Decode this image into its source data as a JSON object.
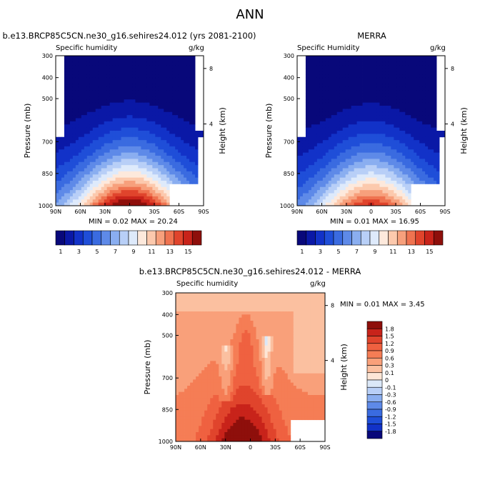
{
  "page": {
    "title": "ANN"
  },
  "panels": [
    {
      "id": "model",
      "title": "b.e13.BRCP85C5CN.ne30_g16.sehires24.012 (yrs 2081-2100)",
      "variable": "Specific humidity",
      "units": "g/kg",
      "stats": "MIN =  0.02  MAX =  20.24"
    },
    {
      "id": "obs",
      "title": "MERRA",
      "variable": "Specific Humidity",
      "units": "g/kg",
      "stats": "MIN =   0.01  MAX =  16.95"
    },
    {
      "id": "diff",
      "title": "b.e13.BRCP85C5CN.ne30_g16.sehires24.012 - MERRA",
      "variable": "Specific humidity",
      "units": "g/kg",
      "stats": "MIN =   0.01  MAX =   3.45"
    }
  ],
  "chart_data": [
    {
      "type": "heatmap",
      "title": "b.e13.BRCP85C5CN.ne30_g16.sehires24.012 (yrs 2081-2100)",
      "subtitle": "Specific humidity",
      "units": "g/kg",
      "ylabel": "Pressure (mb)",
      "ylabel_right": "Height (km)",
      "x_ticks": [
        "90N",
        "60N",
        "30N",
        "0",
        "30S",
        "60S",
        "90S"
      ],
      "y_ticks": [
        "300",
        "400",
        "500",
        "700",
        "850",
        "1000"
      ],
      "y_right_ticks": [
        "8",
        "4"
      ],
      "colorbar_labels": [
        "1",
        "3",
        "5",
        "7",
        "9",
        "11",
        "13",
        "15"
      ],
      "colorbar_levels": [
        1,
        2,
        3,
        4,
        5,
        6,
        7,
        8,
        9,
        10,
        11,
        12,
        13,
        14,
        15
      ],
      "min": 0.02,
      "max": 20.24,
      "palette": [
        "#08087a",
        "#0a18a6",
        "#1232c8",
        "#1f4ed8",
        "#3a6be0",
        "#5e8ae8",
        "#8aaef0",
        "#b8cff7",
        "#deeafb",
        "#fde9dc",
        "#fcc9ad",
        "#f7a07c",
        "#ef7350",
        "#e0442c",
        "#c8231a",
        "#8e0f0b"
      ]
    },
    {
      "type": "heatmap",
      "title": "MERRA",
      "subtitle": "Specific Humidity",
      "units": "g/kg",
      "ylabel": "Pressure (mb)",
      "ylabel_right": "Height (km)",
      "x_ticks": [
        "90N",
        "60N",
        "30N",
        "0",
        "30S",
        "60S",
        "90S"
      ],
      "y_ticks": [
        "300",
        "400",
        "500",
        "700",
        "850",
        "1000"
      ],
      "y_right_ticks": [
        "8",
        "4"
      ],
      "colorbar_labels": [
        "1",
        "3",
        "5",
        "7",
        "9",
        "11",
        "13",
        "15"
      ],
      "colorbar_levels": [
        1,
        2,
        3,
        4,
        5,
        6,
        7,
        8,
        9,
        10,
        11,
        12,
        13,
        14,
        15
      ],
      "min": 0.01,
      "max": 16.95,
      "palette": [
        "#08087a",
        "#0a18a6",
        "#1232c8",
        "#1f4ed8",
        "#3a6be0",
        "#5e8ae8",
        "#8aaef0",
        "#b8cff7",
        "#deeafb",
        "#fde9dc",
        "#fcc9ad",
        "#f7a07c",
        "#ef7350",
        "#e0442c",
        "#c8231a",
        "#8e0f0b"
      ]
    },
    {
      "type": "heatmap",
      "title": "b.e13.BRCP85C5CN.ne30_g16.sehires24.012 - MERRA",
      "subtitle": "Specific humidity",
      "units": "g/kg",
      "ylabel": "Pressure (mb)",
      "ylabel_right": "Height (km)",
      "x_ticks": [
        "90N",
        "60N",
        "30N",
        "0",
        "30S",
        "60S",
        "90S"
      ],
      "y_ticks": [
        "300",
        "400",
        "500",
        "700",
        "850",
        "1000"
      ],
      "y_right_ticks": [
        "8",
        "4"
      ],
      "colorbar_labels": [
        "1.8",
        "1.5",
        "1.2",
        "0.9",
        "0.6",
        "0.3",
        "0.1",
        "0",
        "-0.1",
        "-0.3",
        "-0.6",
        "-0.9",
        "-1.2",
        "-1.5",
        "-1.8"
      ],
      "min": 0.01,
      "max": 3.45,
      "palette": [
        "#8e0f0b",
        "#c8231a",
        "#e0442c",
        "#ef6140",
        "#f57d55",
        "#f9a07a",
        "#fbc0a0",
        "#fde6d6",
        "#dbe8f8",
        "#b8cff7",
        "#8aaef0",
        "#5e8ae8",
        "#3a6be0",
        "#1f4ed8",
        "#1232c8",
        "#08087a"
      ]
    }
  ]
}
